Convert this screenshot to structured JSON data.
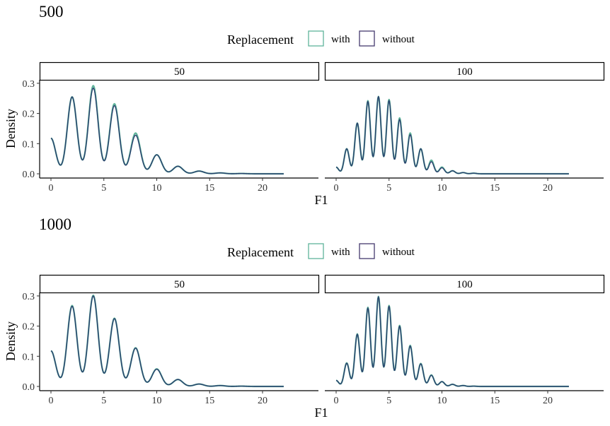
{
  "colors": {
    "with": "#5fb39a",
    "without": "#453a6e",
    "overlap": "#2a3f6e"
  },
  "chart_data": [
    {
      "type": "line",
      "title": "500",
      "legend": {
        "title": "Replacement",
        "placement": "top",
        "entries": [
          "with",
          "without"
        ]
      },
      "xlabel": "F1",
      "ylabel": "Density",
      "xlim": [
        0,
        22
      ],
      "ylim": [
        0,
        0.3
      ],
      "xticks": [
        "0",
        "5",
        "10",
        "15",
        "20"
      ],
      "yticks": [
        "0.0",
        "0.1",
        "0.2",
        "0.3"
      ],
      "panels": [
        {
          "strip": "50",
          "peaks": {
            "with": [
              [
                0,
                0.118
              ],
              [
                2,
                0.255
              ],
              [
                4,
                0.292
              ],
              [
                6,
                0.232
              ],
              [
                8,
                0.135
              ],
              [
                10,
                0.063
              ],
              [
                12,
                0.025
              ],
              [
                14,
                0.009
              ],
              [
                16,
                0.003
              ],
              [
                18,
                0.001
              ]
            ],
            "without": [
              [
                0,
                0.118
              ],
              [
                2,
                0.255
              ],
              [
                4,
                0.284
              ],
              [
                6,
                0.226
              ],
              [
                8,
                0.128
              ],
              [
                10,
                0.063
              ],
              [
                12,
                0.025
              ],
              [
                14,
                0.009
              ],
              [
                16,
                0.003
              ],
              [
                18,
                0.001
              ]
            ]
          }
        },
        {
          "strip": "100",
          "peaks": {
            "with": [
              [
                0,
                0.022
              ],
              [
                1,
                0.083
              ],
              [
                2,
                0.168
              ],
              [
                3,
                0.242
              ],
              [
                4,
                0.256
              ],
              [
                5,
                0.246
              ],
              [
                6,
                0.185
              ],
              [
                7,
                0.135
              ],
              [
                8,
                0.083
              ],
              [
                9,
                0.045
              ],
              [
                10,
                0.022
              ],
              [
                11,
                0.01
              ],
              [
                12,
                0.004
              ],
              [
                13,
                0.002
              ]
            ],
            "without": [
              [
                0,
                0.022
              ],
              [
                1,
                0.083
              ],
              [
                2,
                0.168
              ],
              [
                3,
                0.24
              ],
              [
                4,
                0.256
              ],
              [
                5,
                0.243
              ],
              [
                6,
                0.18
              ],
              [
                7,
                0.13
              ],
              [
                8,
                0.083
              ],
              [
                9,
                0.04
              ],
              [
                10,
                0.02
              ],
              [
                11,
                0.01
              ],
              [
                12,
                0.004
              ],
              [
                13,
                0.002
              ]
            ]
          }
        }
      ]
    },
    {
      "type": "line",
      "title": "1000",
      "legend": {
        "title": "Replacement",
        "placement": "top",
        "entries": [
          "with",
          "without"
        ]
      },
      "xlabel": "F1",
      "ylabel": "Density",
      "xlim": [
        0,
        22
      ],
      "ylim": [
        0,
        0.3
      ],
      "xticks": [
        "0",
        "5",
        "10",
        "15",
        "20"
      ],
      "yticks": [
        "0.0",
        "0.1",
        "0.2",
        "0.3"
      ],
      "panels": [
        {
          "strip": "50",
          "peaks": {
            "with": [
              [
                0,
                0.118
              ],
              [
                2,
                0.268
              ],
              [
                4,
                0.302
              ],
              [
                6,
                0.226
              ],
              [
                8,
                0.128
              ],
              [
                10,
                0.058
              ],
              [
                12,
                0.023
              ],
              [
                14,
                0.008
              ],
              [
                16,
                0.003
              ],
              [
                18,
                0.001
              ]
            ],
            "without": [
              [
                0,
                0.118
              ],
              [
                2,
                0.266
              ],
              [
                4,
                0.3
              ],
              [
                6,
                0.225
              ],
              [
                8,
                0.127
              ],
              [
                10,
                0.057
              ],
              [
                12,
                0.023
              ],
              [
                14,
                0.008
              ],
              [
                16,
                0.003
              ],
              [
                18,
                0.001
              ]
            ]
          }
        },
        {
          "strip": "100",
          "peaks": {
            "with": [
              [
                0,
                0.02
              ],
              [
                1,
                0.078
              ],
              [
                2,
                0.174
              ],
              [
                3,
                0.262
              ],
              [
                4,
                0.298
              ],
              [
                5,
                0.268
              ],
              [
                6,
                0.202
              ],
              [
                7,
                0.136
              ],
              [
                8,
                0.076
              ],
              [
                9,
                0.038
              ],
              [
                10,
                0.016
              ],
              [
                11,
                0.007
              ],
              [
                12,
                0.003
              ],
              [
                13,
                0.001
              ]
            ],
            "without": [
              [
                0,
                0.02
              ],
              [
                1,
                0.077
              ],
              [
                2,
                0.173
              ],
              [
                3,
                0.26
              ],
              [
                4,
                0.297
              ],
              [
                5,
                0.266
              ],
              [
                6,
                0.2
              ],
              [
                7,
                0.134
              ],
              [
                8,
                0.075
              ],
              [
                9,
                0.037
              ],
              [
                10,
                0.016
              ],
              [
                11,
                0.007
              ],
              [
                12,
                0.003
              ],
              [
                13,
                0.001
              ]
            ]
          }
        }
      ]
    }
  ]
}
